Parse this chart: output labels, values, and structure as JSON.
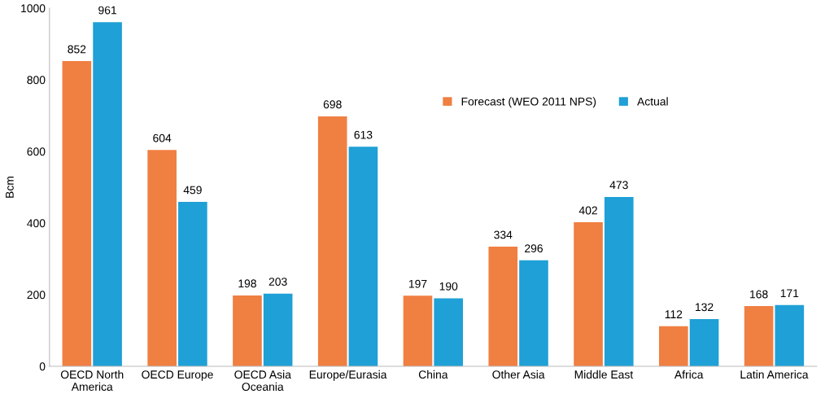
{
  "chart_data": {
    "type": "bar",
    "ylabel": "Bcm",
    "categories": [
      "OECD North\nAmerica",
      "OECD Europe",
      "OECD Asia\nOceania",
      "Europe/Eurasia",
      "China",
      "Other Asia",
      "Middle East",
      "Africa",
      "Latin America"
    ],
    "series": [
      {
        "name": "Forecast (WEO 2011 NPS)",
        "color": "#f07f42",
        "values": [
          852,
          604,
          198,
          698,
          197,
          334,
          402,
          112,
          168
        ]
      },
      {
        "name": "Actual",
        "color": "#1fa0d6",
        "values": [
          961,
          459,
          203,
          613,
          190,
          296,
          473,
          132,
          171
        ]
      }
    ],
    "ylim": [
      0,
      1000
    ],
    "yticks": [
      0,
      200,
      400,
      600,
      800,
      1000
    ],
    "data_labels": true,
    "grid": false,
    "legend": "top right"
  }
}
